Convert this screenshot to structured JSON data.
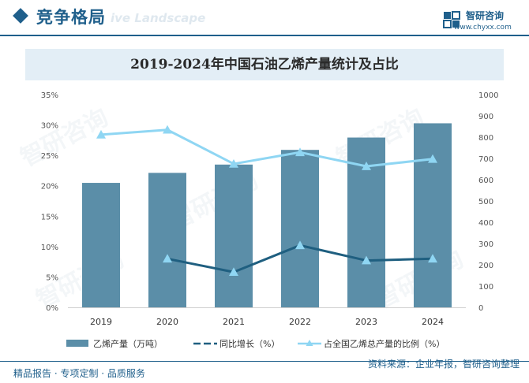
{
  "header": {
    "section_title": "竞争格局",
    "ghost_text": "ive Landscape",
    "brand_name": "智研咨询",
    "brand_url": "www.chyxx.com"
  },
  "watermark_text": "智研咨询",
  "chart_data": {
    "type": "bar",
    "title": "2019-2024年中国石油乙烯产量统计及占比",
    "categories": [
      "2019",
      "2020",
      "2021",
      "2022",
      "2023",
      "2024"
    ],
    "left_axis": {
      "ylim": [
        0,
        35
      ],
      "ticks": [
        "0%",
        "5%",
        "10%",
        "15%",
        "20%",
        "25%",
        "30%",
        "35%"
      ]
    },
    "right_axis": {
      "ylim": [
        0,
        1000
      ],
      "ticks": [
        "0",
        "100",
        "200",
        "300",
        "400",
        "500",
        "600",
        "700",
        "800",
        "900",
        "1000"
      ]
    },
    "series": [
      {
        "name": "乙烯产量（万吨）",
        "type": "bar",
        "axis": "right",
        "values": [
          585,
          632,
          671,
          740,
          798,
          865
        ],
        "color": "#5b8ea8"
      },
      {
        "name": "同比增长（%）",
        "type": "line",
        "axis": "left",
        "values": [
          null,
          8.0,
          5.8,
          10.2,
          7.7,
          8.0
        ],
        "color": "#1f5f80"
      },
      {
        "name": "占全国乙烯总产量的比例（%）",
        "type": "line",
        "axis": "left",
        "values": [
          28.4,
          29.2,
          23.6,
          25.5,
          23.2,
          24.4
        ],
        "color": "#8fd6f3"
      }
    ],
    "legend_position": "bottom",
    "grid": false
  },
  "footer": {
    "left": "精品报告 · 专项定制 · 品质服务",
    "right": "资料来源：企业年报，智研咨询整理"
  }
}
